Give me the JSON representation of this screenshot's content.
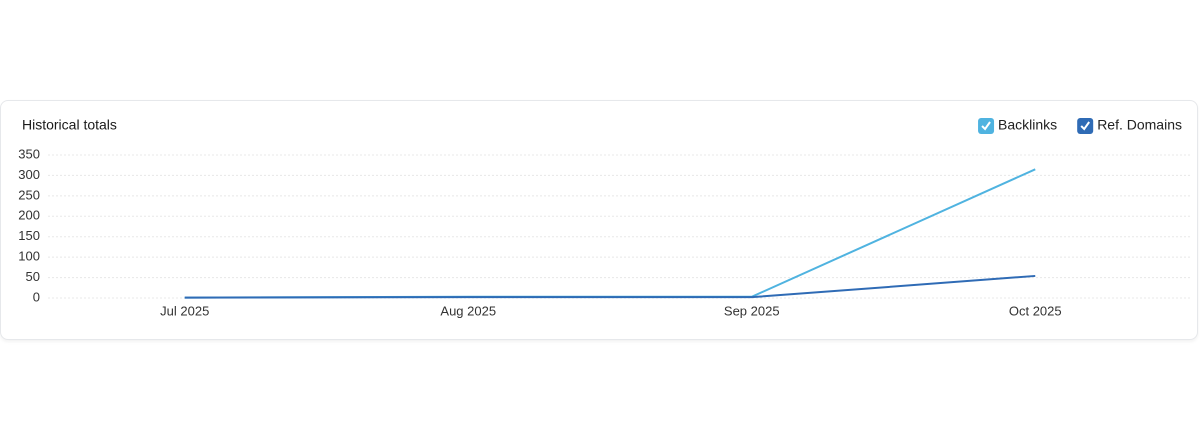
{
  "chart_data": {
    "type": "line",
    "title": "Historical totals",
    "categories": [
      "Jul 2025",
      "Aug 2025",
      "Sep 2025",
      "Oct 2025"
    ],
    "series": [
      {
        "name": "Backlinks",
        "color": "#4fb3e0",
        "values": [
          1,
          3,
          3,
          315
        ]
      },
      {
        "name": "Ref. Domains",
        "color": "#2f6bb5",
        "values": [
          1,
          2,
          2,
          54
        ]
      }
    ],
    "ylim": [
      0,
      350
    ],
    "yticks": [
      0,
      50,
      100,
      150,
      200,
      250,
      300,
      350
    ],
    "grid": true,
    "legend": "top-right"
  }
}
